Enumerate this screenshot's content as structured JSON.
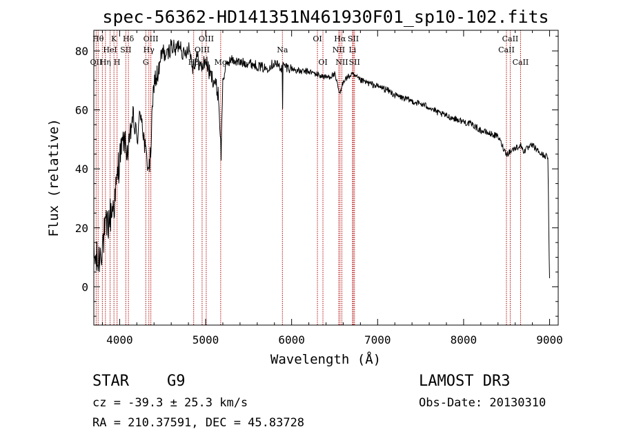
{
  "chart_data": {
    "type": "line",
    "title": "spec-56362-HD141351N461930F01_sp10-102.fits",
    "xlabel": "Wavelength (Å)",
    "ylabel": "Flux (relative)",
    "xlim": [
      3700,
      9100
    ],
    "ylim": [
      -13,
      87
    ],
    "x_ticks": [
      4000,
      5000,
      6000,
      7000,
      8000,
      9000
    ],
    "y_ticks": [
      0,
      20,
      40,
      60,
      80
    ],
    "series": [
      {
        "name": "flux",
        "x": [
          3700,
          3750,
          3800,
          3850,
          3900,
          3950,
          4000,
          4050,
          4100,
          4150,
          4200,
          4250,
          4300,
          4350,
          4400,
          4450,
          4500,
          4550,
          4600,
          4650,
          4700,
          4750,
          4800,
          4850,
          4900,
          4950,
          5000,
          5050,
          5100,
          5150,
          5180,
          5200,
          5250,
          5300,
          5400,
          5500,
          5600,
          5700,
          5800,
          5890,
          5893,
          5900,
          6000,
          6100,
          6200,
          6300,
          6400,
          6500,
          6563,
          6600,
          6700,
          6800,
          6900,
          7000,
          7100,
          7200,
          7300,
          7400,
          7500,
          7600,
          7700,
          7800,
          7900,
          8000,
          8100,
          8200,
          8300,
          8400,
          8498,
          8542,
          8600,
          8662,
          8700,
          8800,
          8900,
          8980,
          8990,
          9000
        ],
        "values": [
          10,
          8,
          15,
          20,
          25,
          30,
          45,
          50,
          45,
          58,
          50,
          60,
          45,
          40,
          70,
          72,
          80,
          78,
          82,
          80,
          83,
          78,
          82,
          75,
          78,
          74,
          77,
          72,
          70,
          65,
          45,
          70,
          76,
          77,
          76,
          76,
          75,
          74,
          76,
          74,
          56,
          75,
          74,
          73,
          73,
          72,
          71,
          72,
          65,
          70,
          72,
          70,
          69,
          68,
          67,
          65,
          64,
          63,
          62,
          61,
          59,
          58,
          57,
          56,
          55,
          53,
          52,
          51,
          45,
          46,
          47,
          48,
          46,
          48,
          45,
          44,
          20,
          2
        ]
      }
    ],
    "line_markers": [
      {
        "wavelength": 3727,
        "labels": [
          "OII"
        ],
        "row": 3
      },
      {
        "wavelength": 3750,
        "labels": [
          "H&#952;"
        ],
        "row": 1
      },
      {
        "wavelength": 3799,
        "labels": [],
        "row": 0
      },
      {
        "wavelength": 3835,
        "labels": [
          "H&#951;"
        ],
        "row": 3
      },
      {
        "wavelength": 3889,
        "labels": [
          "HeI"
        ],
        "row": 2
      },
      {
        "wavelength": 3934,
        "labels": [
          "K"
        ],
        "row": 1
      },
      {
        "wavelength": 3970,
        "labels": [
          "H"
        ],
        "row": 3
      },
      {
        "wavelength": 4072,
        "labels": [
          "SII"
        ],
        "row": 2
      },
      {
        "wavelength": 4102,
        "labels": [
          "H&#948;"
        ],
        "row": 1
      },
      {
        "wavelength": 4304,
        "labels": [
          "G"
        ],
        "row": 3
      },
      {
        "wavelength": 4340,
        "labels": [
          "H&#947;"
        ],
        "row": 2
      },
      {
        "wavelength": 4363,
        "labels": [
          "OIII"
        ],
        "row": 1
      },
      {
        "wavelength": 4861,
        "labels": [
          "H&#946;"
        ],
        "row": 3
      },
      {
        "wavelength": 4959,
        "labels": [
          "OIII"
        ],
        "row": 2
      },
      {
        "wavelength": 5007,
        "labels": [
          "OIII"
        ],
        "row": 1
      },
      {
        "wavelength": 5175,
        "labels": [
          "Mg"
        ],
        "row": 3
      },
      {
        "wavelength": 5893,
        "labels": [
          "Na"
        ],
        "row": 2
      },
      {
        "wavelength": 6300,
        "labels": [
          "OI"
        ],
        "row": 1
      },
      {
        "wavelength": 6364,
        "labels": [
          "OI"
        ],
        "row": 3
      },
      {
        "wavelength": 6548,
        "labels": [
          "NII"
        ],
        "row": 2
      },
      {
        "wavelength": 6563,
        "labels": [
          "H&#945;"
        ],
        "row": 1
      },
      {
        "wavelength": 6584,
        "labels": [
          "NII"
        ],
        "row": 3
      },
      {
        "wavelength": 6708,
        "labels": [
          "Li"
        ],
        "row": 2
      },
      {
        "wavelength": 6717,
        "labels": [
          "SII"
        ],
        "row": 1
      },
      {
        "wavelength": 6731,
        "labels": [
          "SII"
        ],
        "row": 3
      },
      {
        "wavelength": 8498,
        "labels": [
          "CaII"
        ],
        "row": 2
      },
      {
        "wavelength": 8542,
        "labels": [
          "CaII"
        ],
        "row": 1
      },
      {
        "wavelength": 8662,
        "labels": [
          "CaII"
        ],
        "row": 3
      }
    ]
  },
  "info": {
    "object_class": "STAR",
    "subclass": "G9",
    "survey": "LAMOST DR3",
    "redshift": "cz = -39.3 ± 25.3 km/s",
    "obs_date": "Obs-Date: 20130310",
    "coords": "RA = 210.37591, DEC =  45.83728"
  },
  "colors": {
    "spectrum": "#000000",
    "markers": "#b30000",
    "background": "#ffffff"
  }
}
